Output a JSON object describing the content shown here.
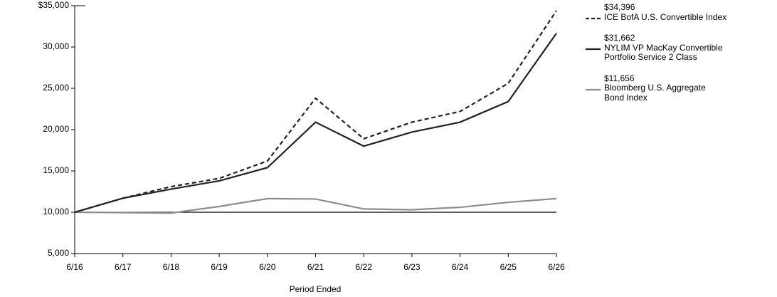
{
  "chart_data": {
    "type": "line",
    "x_label": "Period Ended",
    "categories": [
      "6/16",
      "6/17",
      "6/18",
      "6/19",
      "6/20",
      "6/21",
      "6/22",
      "6/23",
      "6/24",
      "6/25",
      "6/26"
    ],
    "ylim": [
      5000,
      35000
    ],
    "yticks": [
      {
        "value": 5000,
        "label": "5,000"
      },
      {
        "value": 10000,
        "label": "10,000"
      },
      {
        "value": 15000,
        "label": "15,000"
      },
      {
        "value": 20000,
        "label": "20,000"
      },
      {
        "value": 25000,
        "label": "25,000"
      },
      {
        "value": 30000,
        "label": "30,000"
      },
      {
        "value": 35000,
        "label": "$35,000"
      }
    ],
    "reference_line": 10000,
    "series": [
      {
        "name": "ICE BofA U.S. Convertible Index",
        "end_label": "$34,396",
        "color": "#222222",
        "dash": true,
        "values": [
          10000,
          11700,
          13100,
          14100,
          16200,
          23800,
          18900,
          20900,
          22200,
          25600,
          34396
        ]
      },
      {
        "name": "NYLIM VP MacKay Convertible\nPortfolio Service 2 Class",
        "end_label": "$31,662",
        "color": "#222222",
        "dash": false,
        "values": [
          10000,
          11700,
          12800,
          13800,
          15400,
          20900,
          18000,
          19700,
          20900,
          23400,
          31662
        ]
      },
      {
        "name": "Bloomberg U.S. Aggregate\nBond Index",
        "end_label": "$11,656",
        "color": "#8c8c8c",
        "dash": false,
        "values": [
          10000,
          9950,
          9900,
          10700,
          11650,
          11600,
          10400,
          10300,
          10600,
          11200,
          11656
        ]
      }
    ]
  }
}
